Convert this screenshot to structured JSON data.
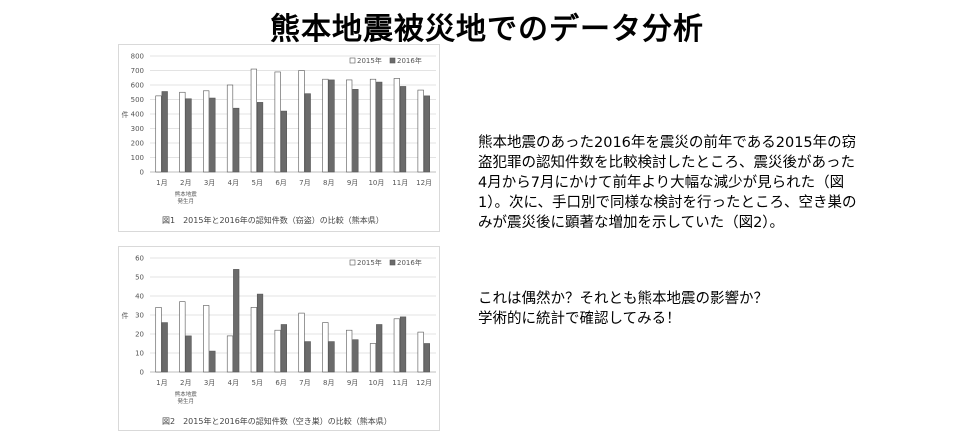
{
  "title": "熊本地震被災地でのデータ分析",
  "text": {
    "paragraph1": "熊本地震のあった2016年を震災の前年である2015年の窃盗犯罪の認知件数を比較検討したところ、震災後があった4月から7月にかけて前年より大幅な減少が見られた（図1）。次に、手口別で同様な検討を行ったところ、空き巣のみが震災後に顕著な増加を示していた（図2）。",
    "question": "これは偶然か？それとも熊本地震の影響か？",
    "closing": "学術的に統計で確認してみる！"
  },
  "chart_data": [
    {
      "type": "bar",
      "title": "図1　2015年と2016年の認知件数（窃盗）の比較（熊本県）",
      "ylabel": "件",
      "xlabel": "熊本地震発生月",
      "categories": [
        "1月",
        "2月",
        "3月",
        "4月",
        "5月",
        "6月",
        "7月",
        "8月",
        "9月",
        "10月",
        "11月",
        "12月"
      ],
      "ylim": [
        0,
        800
      ],
      "yticks": [
        "0",
        "100",
        "200",
        "300",
        "400",
        "500",
        "600",
        "700",
        "800"
      ],
      "grid": true,
      "legend": "top-right",
      "series": [
        {
          "name": "2015年",
          "color": "#ffffff",
          "values": [
            525,
            550,
            560,
            600,
            710,
            690,
            700,
            640,
            635,
            640,
            645,
            565
          ]
        },
        {
          "name": "2016年",
          "color": "#6b6b6b",
          "values": [
            555,
            505,
            510,
            440,
            480,
            420,
            540,
            635,
            570,
            620,
            590,
            525
          ]
        }
      ]
    },
    {
      "type": "bar",
      "title": "図2　2015年と2016年の認知件数（空き巣）の比較（熊本県）",
      "ylabel": "件",
      "xlabel": "熊本地震発生月",
      "categories": [
        "1月",
        "2月",
        "3月",
        "4月",
        "5月",
        "6月",
        "7月",
        "8月",
        "9月",
        "10月",
        "11月",
        "12月"
      ],
      "ylim": [
        0,
        60
      ],
      "yticks": [
        "0",
        "10",
        "20",
        "30",
        "40",
        "50",
        "60"
      ],
      "grid": true,
      "legend": "top-right",
      "series": [
        {
          "name": "2015年",
          "color": "#ffffff",
          "values": [
            34,
            37,
            35,
            19,
            34,
            22,
            31,
            26,
            22,
            15,
            28,
            21
          ]
        },
        {
          "name": "2016年",
          "color": "#6b6b6b",
          "values": [
            26,
            19,
            11,
            54,
            41,
            25,
            16,
            16,
            17,
            25,
            29,
            15
          ]
        }
      ]
    }
  ]
}
